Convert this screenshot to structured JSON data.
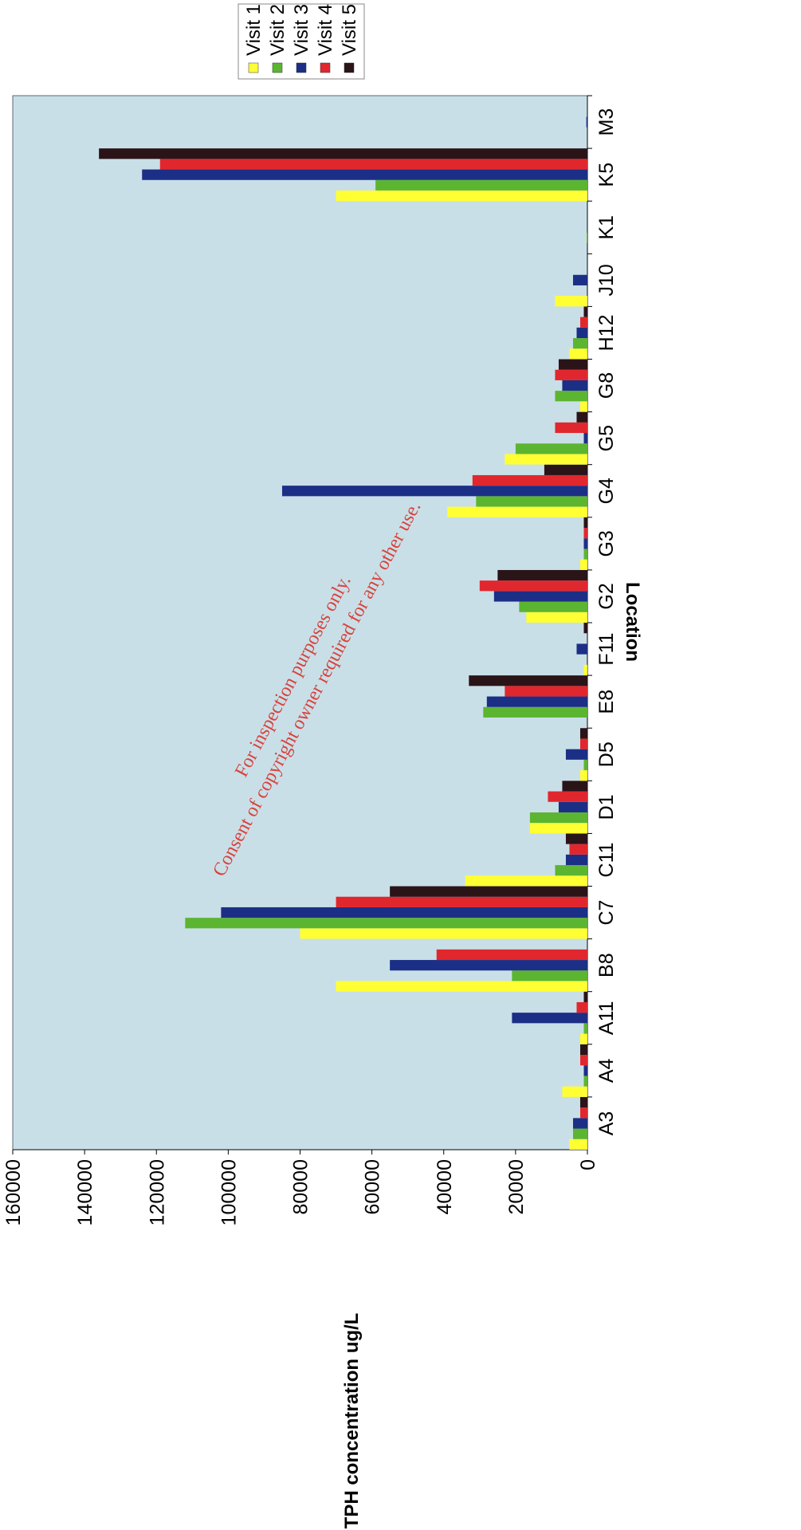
{
  "chart_data": {
    "type": "bar",
    "orientation": "horizontal",
    "xlabel": "Location",
    "ylabel": "TPH concentration ug/L",
    "ylim": [
      0,
      160000
    ],
    "yticks": [
      "0",
      "20000",
      "40000",
      "60000",
      "80000",
      "100000",
      "120000",
      "140000",
      "160000"
    ],
    "categories": [
      "A3",
      "A4",
      "A11",
      "B8",
      "C7",
      "C11",
      "D1",
      "D5",
      "E8",
      "F11",
      "G2",
      "G3",
      "G4",
      "G5",
      "G8",
      "H12",
      "J10",
      "K1",
      "K5",
      "M3"
    ],
    "series": [
      {
        "name": "Visit 1",
        "color": "#ffff33",
        "values": [
          5000,
          7000,
          2000,
          70000,
          80000,
          34000,
          16000,
          2000,
          0,
          1000,
          17000,
          2000,
          39000,
          23000,
          2000,
          5000,
          9000,
          0,
          70000,
          0
        ]
      },
      {
        "name": "Visit 2",
        "color": "#5cb531",
        "values": [
          4000,
          1000,
          1000,
          21000,
          112000,
          9000,
          16000,
          1000,
          29000,
          0,
          19000,
          1000,
          31000,
          20000,
          9000,
          4000,
          0,
          200,
          59000,
          0
        ]
      },
      {
        "name": "Visit 3",
        "color": "#1c2f86",
        "values": [
          4000,
          1000,
          21000,
          55000,
          102000,
          6000,
          8000,
          6000,
          28000,
          3000,
          26000,
          1000,
          85000,
          1000,
          7000,
          3000,
          4000,
          0,
          124000,
          300
        ]
      },
      {
        "name": "Visit 4",
        "color": "#e1272e",
        "values": [
          2000,
          2000,
          3000,
          42000,
          70000,
          5000,
          11000,
          2000,
          23000,
          0,
          30000,
          1000,
          32000,
          9000,
          9000,
          2000,
          0,
          0,
          119000,
          0
        ]
      },
      {
        "name": "Visit 5",
        "color": "#2a1418",
        "values": [
          2000,
          2000,
          1000,
          0,
          55000,
          6000,
          7000,
          2000,
          33000,
          1000,
          25000,
          1000,
          12000,
          3000,
          8000,
          1000,
          0,
          0,
          136000,
          0
        ]
      }
    ],
    "legend_position": "top-right",
    "grid": false,
    "plot_background": "#c9dfe8"
  },
  "watermark": {
    "line1": "For inspection purposes only.",
    "line2": "Consent of copyright owner required for any other use."
  }
}
